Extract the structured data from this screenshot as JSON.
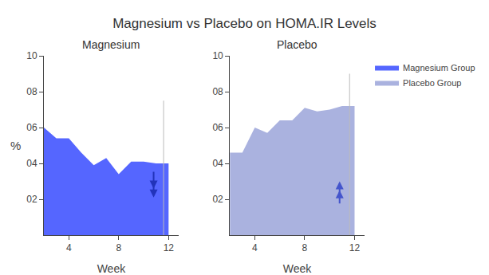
{
  "chart_data": [
    {
      "type": "area",
      "title": "Magnesium vs Placebo on HOMA.IR Levels",
      "subtitle": "Magnesium",
      "xlabel": "Week",
      "ylabel": "%",
      "x": [
        2,
        3,
        4,
        5,
        6,
        7,
        8,
        9,
        10,
        11,
        12
      ],
      "series": [
        {
          "name": "Magnesium Group",
          "color": "#5566ff",
          "values": [
            0.6,
            0.54,
            0.54,
            0.46,
            0.39,
            0.43,
            0.34,
            0.41,
            0.41,
            0.4,
            0.4
          ]
        }
      ],
      "xlim": [
        2,
        12.8
      ],
      "xticks": [
        4,
        8,
        12
      ],
      "ylim": [
        0.0,
        1.0
      ],
      "yticks": [
        {
          "value": 0.2,
          "label": "02"
        },
        {
          "value": 0.4,
          "label": "04"
        },
        {
          "value": 0.6,
          "label": "06"
        },
        {
          "value": 0.8,
          "label": "08"
        },
        {
          "value": 1.0,
          "label": "10"
        }
      ],
      "grid": false,
      "legend": "upper right",
      "annotations": [
        {
          "type": "vline",
          "x": 11.6,
          "y_end": 0.75
        },
        {
          "type": "arrow",
          "x": 10.8,
          "from": 0.36,
          "to": 0.26,
          "color": "#2233bb"
        },
        {
          "type": "arrow",
          "x": 10.8,
          "from": 0.3,
          "to": 0.21,
          "color": "#2233bb"
        }
      ]
    },
    {
      "type": "area",
      "subtitle": "Placebo",
      "xlabel": "Week",
      "x": [
        2,
        3,
        4,
        5,
        6,
        7,
        8,
        9,
        10,
        11,
        12
      ],
      "series": [
        {
          "name": "Placebo Group",
          "color": "#aab2df",
          "values": [
            0.46,
            0.46,
            0.6,
            0.57,
            0.64,
            0.64,
            0.71,
            0.69,
            0.7,
            0.72,
            0.72
          ]
        }
      ],
      "xlim": [
        2,
        12.8
      ],
      "xticks": [
        4,
        8,
        12
      ],
      "ylim": [
        0.0,
        1.0
      ],
      "yticks": [
        {
          "value": 0.2,
          "label": "02"
        },
        {
          "value": 0.4,
          "label": "04"
        },
        {
          "value": 0.6,
          "label": "06"
        },
        {
          "value": 0.8,
          "label": "08"
        },
        {
          "value": 1.0,
          "label": "10"
        }
      ],
      "grid": false,
      "annotations": [
        {
          "type": "vline",
          "x": 11.6,
          "y_end": 0.9
        },
        {
          "type": "arrow",
          "x": 10.8,
          "from": 0.22,
          "to": 0.3,
          "color": "#4455cc"
        },
        {
          "type": "arrow",
          "x": 10.8,
          "from": 0.17,
          "to": 0.25,
          "color": "#4455cc"
        }
      ]
    }
  ]
}
